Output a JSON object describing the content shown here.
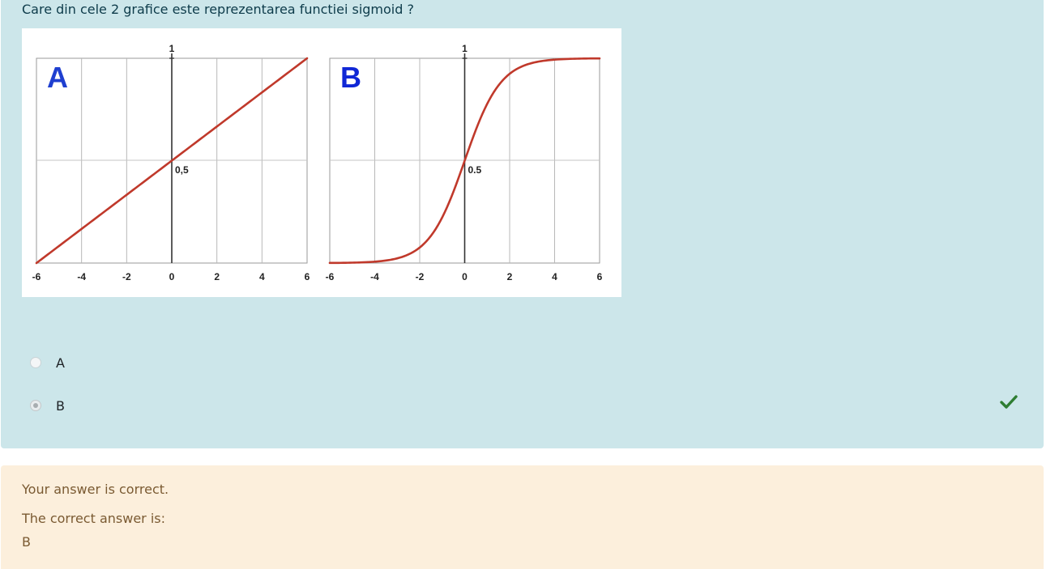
{
  "question": {
    "text": "Care din cele 2 grafice este reprezentarea functiei sigmoid ?"
  },
  "figure": {
    "panels": [
      {
        "letter": "A",
        "curve": "linear",
        "letter_color": "#1f3fd0"
      },
      {
        "letter": "B",
        "curve": "sigmoid",
        "letter_color": "#1027d6"
      }
    ],
    "x_ticks": [
      "-6",
      "-4",
      "-2",
      "0",
      "2",
      "4",
      "6"
    ],
    "y_top_label": "1",
    "mid_label": "0,5",
    "mid_label_b": "0.5",
    "curve_color": "#c0392b"
  },
  "options": [
    {
      "label": "A",
      "selected": false
    },
    {
      "label": "B",
      "selected": true
    }
  ],
  "status": {
    "icon": "check-icon",
    "color": "#2e7d32"
  },
  "feedback": {
    "result": "Your answer is correct.",
    "correct_answer_label": "The correct answer is:",
    "correct_answer": "B"
  }
}
